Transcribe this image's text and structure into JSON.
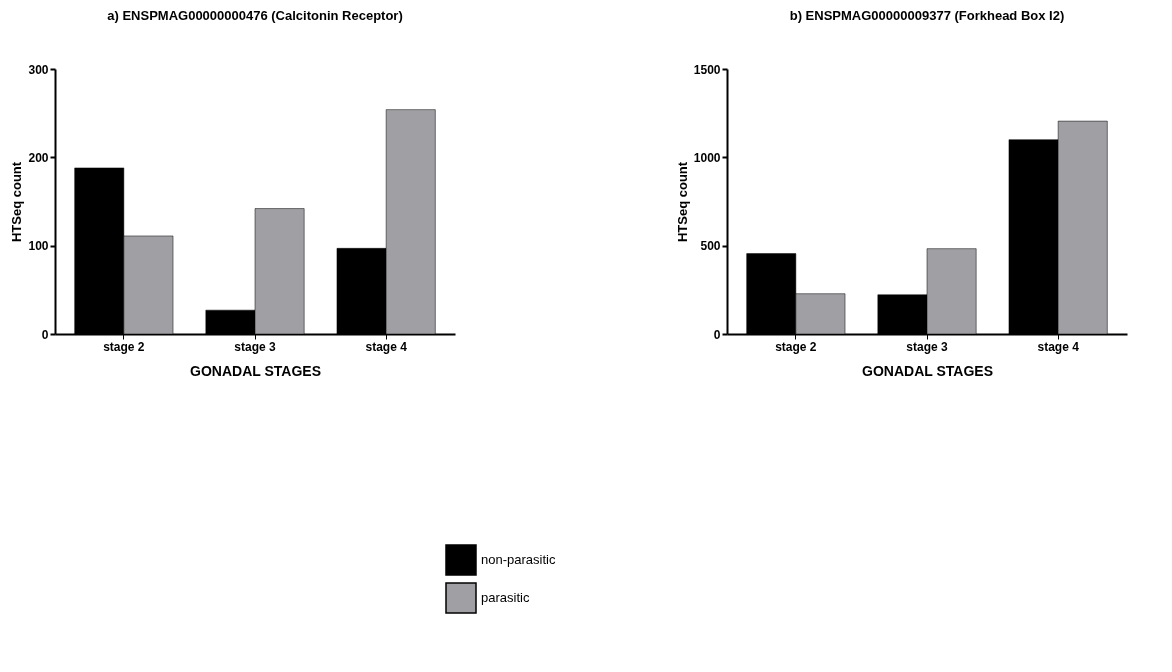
{
  "chart_data": [
    {
      "type": "bar",
      "title": "a) ENSPMAG00000000476 (Calcitonin Receptor)",
      "xlabel": "GONADAL STAGES",
      "ylabel": "HTSeq count",
      "categories": [
        "stage 2",
        "stage 3",
        "stage 4"
      ],
      "ylim": [
        0,
        300
      ],
      "yticks": [
        0,
        100,
        200,
        300
      ],
      "legend": "bottom",
      "series": [
        {
          "name": "non-parasitic",
          "color": "#000000",
          "values": [
            188,
            27,
            97
          ]
        },
        {
          "name": "parasitic",
          "color": "#a0a0a4",
          "values": [
            111,
            142,
            254
          ]
        }
      ]
    },
    {
      "type": "bar",
      "title": "b) ENSPMAG00000009377 (Forkhead Box I2)",
      "xlabel": "GONADAL STAGES",
      "ylabel": "HTSeq count",
      "categories": [
        "stage 2",
        "stage 3",
        "stage 4"
      ],
      "ylim": [
        0,
        1500
      ],
      "yticks": [
        0,
        500,
        1000,
        1500
      ],
      "series": [
        {
          "color": "#000000",
          "values": [
            455,
            222,
            1100
          ]
        },
        {
          "color": "#a0a0a4",
          "values": [
            228,
            483,
            1205
          ]
        }
      ]
    }
  ]
}
